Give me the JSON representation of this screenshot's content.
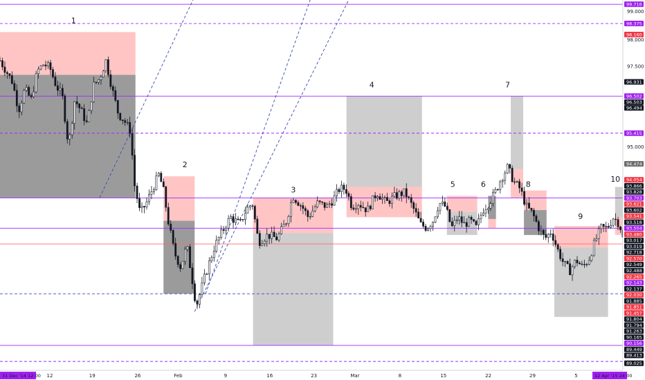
{
  "chart_data": {
    "type": "candlestick",
    "colors": {
      "up": "#26a69a",
      "down": "#ef5350",
      "candle": "#131722",
      "purple_line": "#9c27ff",
      "blue_dash": "#3949ab",
      "red_line": "#ff6b6b",
      "zone_red": "#ff9e9e",
      "zone_grey": "#7a7a7a",
      "zone_light_grey": "#bdbdbd",
      "axis_black": "#131722",
      "axis_red": "#f23645",
      "axis_purple": "#a020f0",
      "axis_grey": "#6b6b6b"
    },
    "x_axis": {
      "ticks": [
        "12",
        "19",
        "26",
        "Feb",
        "9",
        "16",
        "23",
        "Mar",
        "8",
        "15",
        "22",
        "29",
        "5"
      ],
      "start_label": "31 Dec '14  12:00",
      "end_label": "12 Apr '15  24:00"
    },
    "y_axis": {
      "ylim": [
        88.9,
        99.3
      ],
      "ticks": [
        "99.000",
        "98.000",
        "97.500",
        "96.500",
        "95.000"
      ],
      "price_labels": [
        {
          "text": "99.716",
          "value": 99.18,
          "style": "purple"
        },
        {
          "text": "98.375",
          "value": 98.64,
          "style": "purple"
        },
        {
          "text": "98.160",
          "value": 98.33,
          "style": "red"
        },
        {
          "text": "96.931",
          "value": 97.0,
          "style": "black"
        },
        {
          "text": "96.502",
          "value": 96.6,
          "style": "purple"
        },
        {
          "text": "96.503",
          "value": 96.43,
          "style": "black"
        },
        {
          "text": "96.494",
          "value": 96.27,
          "style": "black"
        },
        {
          "text": "95.415",
          "value": 95.56,
          "style": "purple"
        },
        {
          "text": "94.474",
          "value": 94.7,
          "style": "grey"
        },
        {
          "text": "94.054",
          "value": 94.25,
          "style": "red"
        },
        {
          "text": "93.866",
          "value": 94.08,
          "style": "black"
        },
        {
          "text": "93.828",
          "value": 93.91,
          "style": "black"
        },
        {
          "text": "93.703",
          "value": 93.74,
          "style": "purple"
        },
        {
          "text": "93.621",
          "value": 93.57,
          "style": "red"
        },
        {
          "text": "93.602",
          "value": 93.4,
          "style": "black"
        },
        {
          "text": "93.541",
          "value": 93.23,
          "style": "red"
        },
        {
          "text": "93.518",
          "value": 93.06,
          "style": "black"
        },
        {
          "text": "93.504",
          "value": 92.89,
          "style": "purple"
        },
        {
          "text": "93.480",
          "value": 92.72,
          "style": "red"
        },
        {
          "text": "93.017",
          "value": 92.55,
          "style": "black"
        },
        {
          "text": "93.019",
          "value": 92.38,
          "style": "black"
        },
        {
          "text": "92.718",
          "value": 92.21,
          "style": "black"
        },
        {
          "text": "92.570",
          "value": 92.04,
          "style": "red"
        },
        {
          "text": "92.549",
          "value": 91.87,
          "style": "black"
        },
        {
          "text": "92.488",
          "value": 91.7,
          "style": "black"
        },
        {
          "text": "92.265",
          "value": 91.53,
          "style": "red"
        },
        {
          "text": "92.143",
          "value": 91.36,
          "style": "purple"
        },
        {
          "text": "92.137",
          "value": 91.19,
          "style": "black"
        },
        {
          "text": "92.030",
          "value": 91.02,
          "style": "red"
        },
        {
          "text": "91.885",
          "value": 90.85,
          "style": "black"
        },
        {
          "text": "91.851",
          "value": 90.68,
          "style": "red"
        },
        {
          "text": "91.457",
          "value": 90.51,
          "style": "red"
        },
        {
          "text": "91.804",
          "value": 90.34,
          "style": "black"
        },
        {
          "text": "91.794",
          "value": 90.17,
          "style": "black"
        },
        {
          "text": "91.263",
          "value": 90.0,
          "style": "black"
        },
        {
          "text": "90.165",
          "value": 89.83,
          "style": "black"
        },
        {
          "text": "90.156",
          "value": 89.66,
          "style": "purple"
        },
        {
          "text": "89.449",
          "value": 89.49,
          "style": "black"
        },
        {
          "text": "89.413",
          "value": 89.32,
          "style": "black"
        },
        {
          "text": "89.025",
          "value": 89.1,
          "style": "black"
        }
      ]
    },
    "horizontal_lines": [
      {
        "value": 99.18,
        "style": "purple-solid"
      },
      {
        "value": 98.64,
        "style": "purple-dash"
      },
      {
        "value": 96.6,
        "style": "purple-solid"
      },
      {
        "value": 95.56,
        "style": "purple-dash"
      },
      {
        "value": 93.74,
        "style": "purple-solid"
      },
      {
        "value": 92.89,
        "style": "purple-solid"
      },
      {
        "value": 92.45,
        "style": "red-solid"
      },
      {
        "value": 91.05,
        "style": "blue-dash"
      },
      {
        "value": 89.6,
        "style": "purple-solid"
      },
      {
        "value": 89.15,
        "style": "purple-dash"
      }
    ],
    "zone_labels": [
      "1",
      "2",
      "3",
      "4",
      "5",
      "6",
      "7",
      "8",
      "9",
      "10"
    ],
    "zones": [
      {
        "label": "1",
        "x0": 0.0,
        "x1": 0.2175,
        "red_top": 98.4,
        "red_bottom": 97.2,
        "grey_top": 97.2,
        "grey_bottom": 93.75,
        "grey": "dark"
      },
      {
        "label": "2",
        "x0": 0.2625,
        "x1": 0.3125,
        "red_top": 94.35,
        "red_bottom": 93.1,
        "grey_top": 93.1,
        "grey_bottom": 91.05,
        "grey": "dark"
      },
      {
        "label": "3",
        "x0": 0.4062,
        "x1": 0.535,
        "red_top": 93.75,
        "red_bottom": 92.75,
        "grey_top": 92.75,
        "grey_bottom": 89.6,
        "grey": "light"
      },
      {
        "label": "4",
        "x0": 0.5563,
        "x1": 0.6775,
        "red_top": 94.05,
        "red_bottom": 93.2,
        "grey_top": 96.6,
        "grey_bottom": 94.05,
        "grey": "light"
      },
      {
        "label": "5",
        "x0": 0.7175,
        "x1": 0.7662,
        "red_top": 93.8,
        "red_bottom": 93.35,
        "grey_top": 93.35,
        "grey_bottom": 92.7,
        "grey": "light"
      },
      {
        "label": "6",
        "x0": 0.7838,
        "x1": 0.7963,
        "red_top": 93.15,
        "red_bottom": 92.9,
        "grey_top": 93.8,
        "grey_bottom": 93.15,
        "grey": "dark"
      },
      {
        "label": "7",
        "x0": 0.82,
        "x1": 0.84,
        "red_top": 94.55,
        "red_bottom": 93.75,
        "grey_top": 96.6,
        "grey_bottom": 94.55,
        "grey": "light"
      },
      {
        "label": "8",
        "x0": 0.8412,
        "x1": 0.8775,
        "red_top": 93.95,
        "red_bottom": 93.4,
        "grey_top": 93.4,
        "grey_bottom": 92.7,
        "grey": "dark"
      },
      {
        "label": "9",
        "x0": 0.89,
        "x1": 0.9762,
        "red_top": 92.95,
        "red_bottom": 92.35,
        "grey_top": 92.35,
        "grey_bottom": 90.4,
        "grey": "light"
      },
      {
        "label": "10",
        "x0": 0.9875,
        "x1": 1.0,
        "red_top": 93.2,
        "red_bottom": 92.7,
        "grey_top": 94.05,
        "grey_bottom": 93.2,
        "grey": "light"
      }
    ],
    "diagonals": [
      {
        "from": [
          0.3125,
          90.55
        ],
        "to": [
          0.5625,
          99.4
        ]
      },
      {
        "from": [
          0.33,
          91.05
        ],
        "to": [
          0.5,
          99.4
        ]
      },
      {
        "from": [
          0.16,
          93.75
        ],
        "to": [
          0.3125,
          99.4
        ]
      }
    ],
    "price_path": [
      [
        0.0,
        97.6
      ],
      [
        0.01,
        97.3
      ],
      [
        0.02,
        97.0
      ],
      [
        0.03,
        96.2
      ],
      [
        0.04,
        96.8
      ],
      [
        0.05,
        96.5
      ],
      [
        0.06,
        97.3
      ],
      [
        0.07,
        97.5
      ],
      [
        0.08,
        97.4
      ],
      [
        0.09,
        96.9
      ],
      [
        0.1,
        96.6
      ],
      [
        0.11,
        95.2
      ],
      [
        0.12,
        96.5
      ],
      [
        0.13,
        96.2
      ],
      [
        0.14,
        95.8
      ],
      [
        0.15,
        96.9
      ],
      [
        0.16,
        97.1
      ],
      [
        0.17,
        97.6
      ],
      [
        0.18,
        96.8
      ],
      [
        0.19,
        96.1
      ],
      [
        0.2,
        95.9
      ],
      [
        0.21,
        95.6
      ],
      [
        0.215,
        94.2
      ],
      [
        0.225,
        93.3
      ],
      [
        0.235,
        93.6
      ],
      [
        0.245,
        94.0
      ],
      [
        0.255,
        94.4
      ],
      [
        0.262,
        94.0
      ],
      [
        0.27,
        93.1
      ],
      [
        0.28,
        92.2
      ],
      [
        0.29,
        91.8
      ],
      [
        0.3,
        92.4
      ],
      [
        0.31,
        91.3
      ],
      [
        0.315,
        90.7
      ],
      [
        0.33,
        91.6
      ],
      [
        0.345,
        92.4
      ],
      [
        0.36,
        92.9
      ],
      [
        0.37,
        93.2
      ],
      [
        0.385,
        93.0
      ],
      [
        0.395,
        93.4
      ],
      [
        0.405,
        93.6
      ],
      [
        0.415,
        92.5
      ],
      [
        0.43,
        92.7
      ],
      [
        0.445,
        92.6
      ],
      [
        0.46,
        93.1
      ],
      [
        0.47,
        93.8
      ],
      [
        0.485,
        93.5
      ],
      [
        0.495,
        93.2
      ],
      [
        0.51,
        93.6
      ],
      [
        0.525,
        93.5
      ],
      [
        0.535,
        93.7
      ],
      [
        0.545,
        94.0
      ],
      [
        0.555,
        94.0
      ],
      [
        0.565,
        93.5
      ],
      [
        0.575,
        93.6
      ],
      [
        0.59,
        93.4
      ],
      [
        0.605,
        93.9
      ],
      [
        0.62,
        93.6
      ],
      [
        0.635,
        93.8
      ],
      [
        0.65,
        93.9
      ],
      [
        0.665,
        93.4
      ],
      [
        0.675,
        93.0
      ],
      [
        0.685,
        92.9
      ],
      [
        0.695,
        93.1
      ],
      [
        0.705,
        93.6
      ],
      [
        0.715,
        93.5
      ],
      [
        0.725,
        92.9
      ],
      [
        0.735,
        93.2
      ],
      [
        0.745,
        93.0
      ],
      [
        0.755,
        93.1
      ],
      [
        0.765,
        92.9
      ],
      [
        0.775,
        93.4
      ],
      [
        0.785,
        93.6
      ],
      [
        0.795,
        93.9
      ],
      [
        0.805,
        94.3
      ],
      [
        0.815,
        94.6
      ],
      [
        0.825,
        94.2
      ],
      [
        0.835,
        94.0
      ],
      [
        0.845,
        93.5
      ],
      [
        0.855,
        93.3
      ],
      [
        0.865,
        92.9
      ],
      [
        0.875,
        92.6
      ],
      [
        0.885,
        92.8
      ],
      [
        0.895,
        92.3
      ],
      [
        0.905,
        91.9
      ],
      [
        0.915,
        91.7
      ],
      [
        0.925,
        92.0
      ],
      [
        0.935,
        91.8
      ],
      [
        0.945,
        92.0
      ],
      [
        0.955,
        92.5
      ],
      [
        0.965,
        92.9
      ],
      [
        0.975,
        92.9
      ],
      [
        0.985,
        93.2
      ],
      [
        0.995,
        93.0
      ],
      [
        1.0,
        92.6
      ]
    ]
  }
}
